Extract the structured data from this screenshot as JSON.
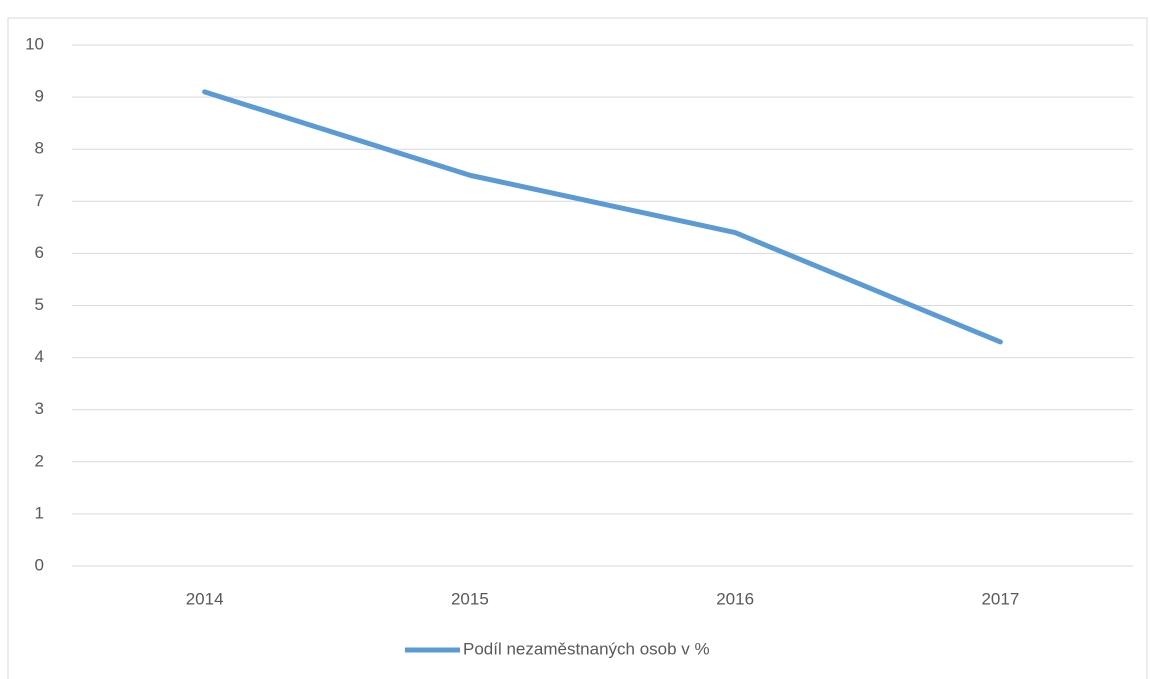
{
  "chart_data": {
    "type": "line",
    "categories": [
      "2014",
      "2015",
      "2016",
      "2017"
    ],
    "series": [
      {
        "name": "Podíl nezaměstnaných osob v %",
        "color": "#5b9bd5",
        "values": [
          9.1,
          7.5,
          6.4,
          4.3
        ]
      }
    ],
    "ylim": [
      0,
      10
    ],
    "yticks": [
      0,
      1,
      2,
      3,
      4,
      5,
      6,
      7,
      8,
      9,
      10
    ],
    "grid": true,
    "legend": "bottom"
  }
}
